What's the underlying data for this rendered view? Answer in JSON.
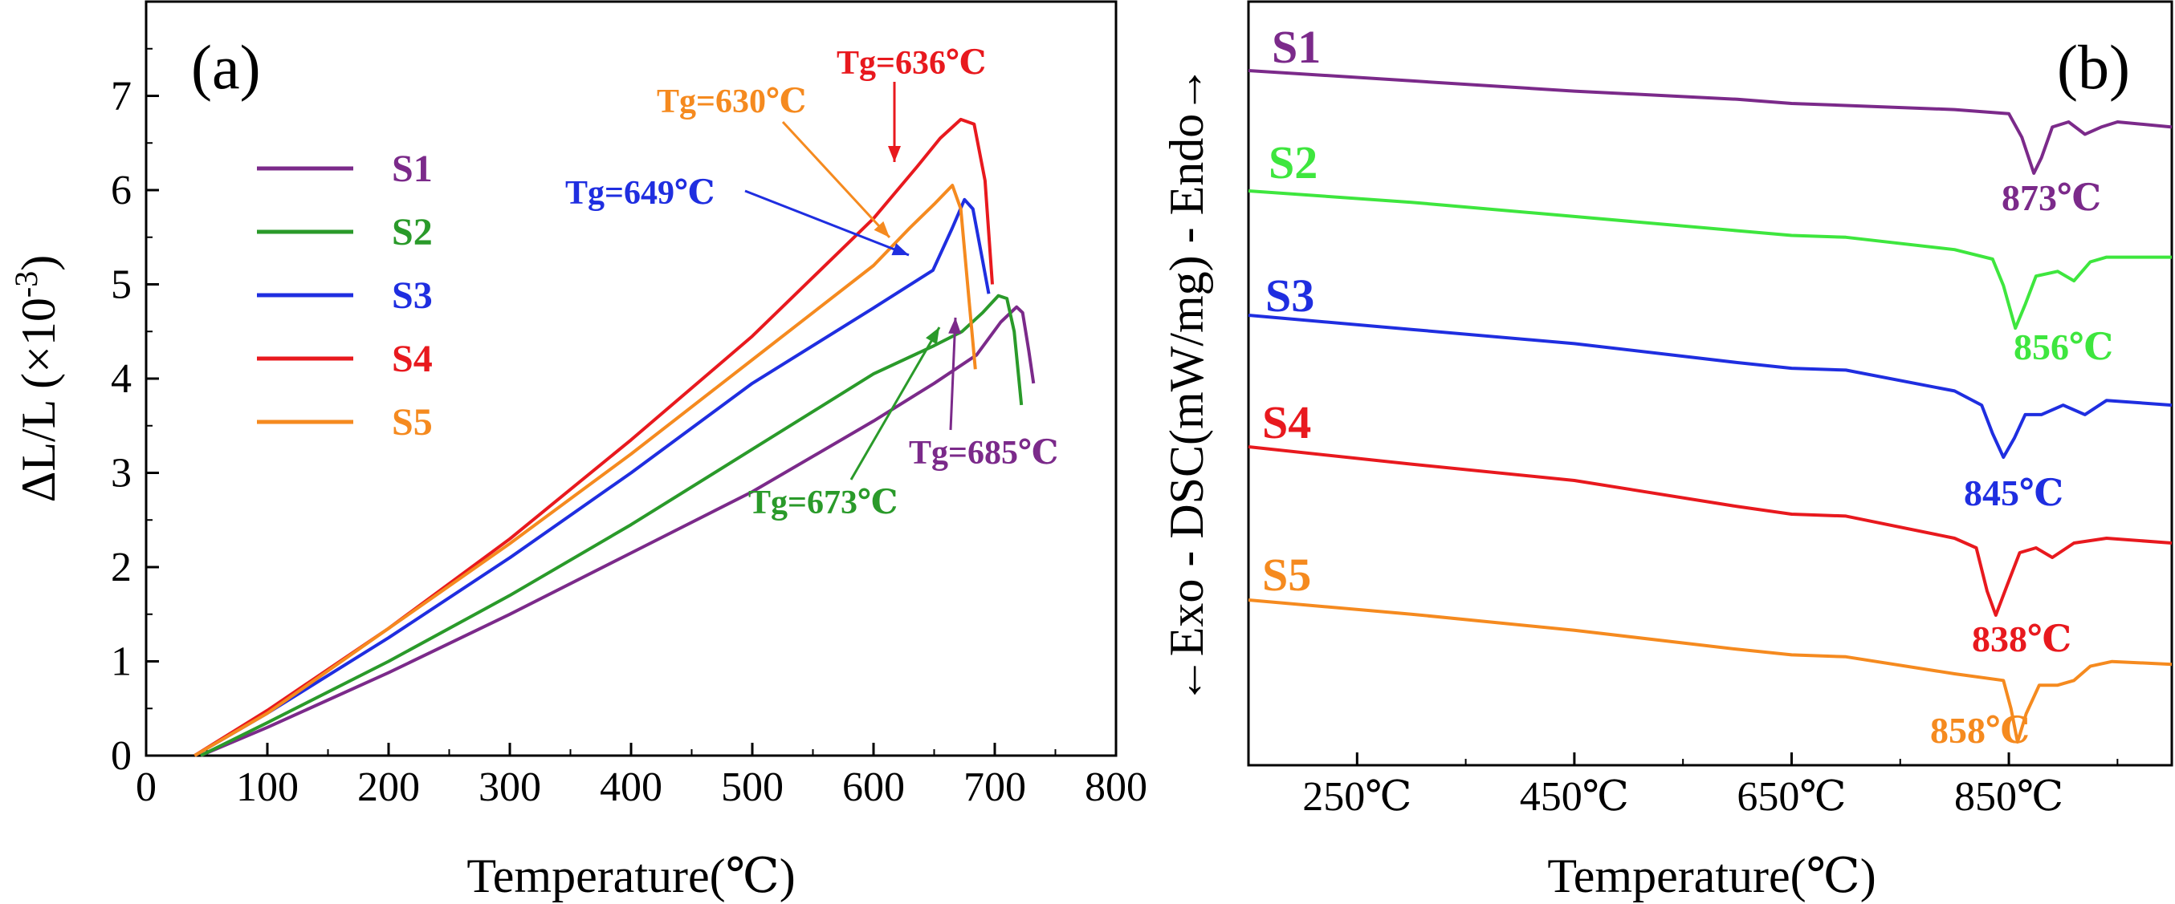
{
  "chart_data": [
    {
      "panel": "(a)",
      "type": "line",
      "xlabel": "Temperature(℃)",
      "ylabel_main": "ΔL/L (×10",
      "ylabel_sup": "-3",
      "ylabel_close": ")",
      "xlim": [
        0,
        800
      ],
      "ylim": [
        0,
        8
      ],
      "xticks": [
        0,
        100,
        200,
        300,
        400,
        500,
        600,
        700,
        800
      ],
      "yticks": [
        0,
        1,
        2,
        3,
        4,
        5,
        6,
        7
      ],
      "legend": {
        "placement": "upper-left"
      },
      "series": [
        {
          "name": "S1",
          "color": "#7b2a8a",
          "points": [
            [
              45,
              0
            ],
            [
              100,
              0.3
            ],
            [
              200,
              0.88
            ],
            [
              300,
              1.5
            ],
            [
              400,
              2.15
            ],
            [
              500,
              2.8
            ],
            [
              600,
              3.55
            ],
            [
              650,
              3.95
            ],
            [
              685,
              4.25
            ],
            [
              705,
              4.6
            ],
            [
              718,
              4.76
            ],
            [
              723,
              4.7
            ],
            [
              728,
              4.3
            ],
            [
              732,
              3.95
            ]
          ]
        },
        {
          "name": "S2",
          "color": "#2a9a2a",
          "points": [
            [
              45,
              0
            ],
            [
              100,
              0.35
            ],
            [
              200,
              1.0
            ],
            [
              300,
              1.7
            ],
            [
              400,
              2.45
            ],
            [
              500,
              3.25
            ],
            [
              600,
              4.05
            ],
            [
              650,
              4.35
            ],
            [
              673,
              4.5
            ],
            [
              690,
              4.7
            ],
            [
              703,
              4.88
            ],
            [
              710,
              4.85
            ],
            [
              716,
              4.5
            ],
            [
              722,
              3.72
            ]
          ]
        },
        {
          "name": "S3",
          "color": "#1f2ee0",
          "points": [
            [
              40,
              0
            ],
            [
              100,
              0.45
            ],
            [
              200,
              1.25
            ],
            [
              300,
              2.1
            ],
            [
              400,
              3.0
            ],
            [
              500,
              3.95
            ],
            [
              600,
              4.75
            ],
            [
              649,
              5.15
            ],
            [
              665,
              5.6
            ],
            [
              675,
              5.9
            ],
            [
              682,
              5.8
            ],
            [
              690,
              5.25
            ],
            [
              695,
              4.9
            ]
          ]
        },
        {
          "name": "S4",
          "color": "#e8191e",
          "points": [
            [
              40,
              0
            ],
            [
              100,
              0.48
            ],
            [
              200,
              1.35
            ],
            [
              300,
              2.3
            ],
            [
              400,
              3.35
            ],
            [
              500,
              4.45
            ],
            [
              600,
              5.7
            ],
            [
              636,
              6.25
            ],
            [
              655,
              6.55
            ],
            [
              672,
              6.75
            ],
            [
              683,
              6.7
            ],
            [
              692,
              6.1
            ],
            [
              698,
              5.0
            ]
          ]
        },
        {
          "name": "S5",
          "color": "#f58a1f",
          "points": [
            [
              40,
              0
            ],
            [
              100,
              0.45
            ],
            [
              200,
              1.35
            ],
            [
              300,
              2.25
            ],
            [
              400,
              3.2
            ],
            [
              500,
              4.2
            ],
            [
              600,
              5.2
            ],
            [
              630,
              5.6
            ],
            [
              650,
              5.85
            ],
            [
              665,
              6.05
            ],
            [
              672,
              5.8
            ],
            [
              679,
              4.8
            ],
            [
              684,
              4.1
            ]
          ]
        }
      ],
      "annotations": [
        {
          "text": "Tg=636℃",
          "color": "#e8191e"
        },
        {
          "text": "Tg=630℃",
          "color": "#f58a1f"
        },
        {
          "text": "Tg=649℃",
          "color": "#1f2ee0"
        },
        {
          "text": "Tg=685℃",
          "color": "#7b2a8a"
        },
        {
          "text": "Tg=673℃",
          "color": "#2a9a2a"
        }
      ]
    },
    {
      "panel": "(b)",
      "type": "line",
      "xlabel": "Temperature(℃)",
      "ylabel": "←Exo - DSC(mW/mg) - Endo→",
      "xlim": [
        150,
        1000
      ],
      "xticks": [
        250,
        450,
        650,
        850
      ],
      "xtick_labels": [
        "250℃",
        "450℃",
        "650℃",
        "850℃"
      ],
      "series": [
        {
          "name": "S1",
          "color": "#7b2a8a",
          "peak_label": "873℃",
          "points": [
            [
              150,
              0.0
            ],
            [
              300,
              0.1
            ],
            [
              450,
              0.2
            ],
            [
              600,
              0.28
            ],
            [
              650,
              0.32
            ],
            [
              700,
              0.34
            ],
            [
              800,
              0.38
            ],
            [
              850,
              0.42
            ],
            [
              862,
              0.65
            ],
            [
              873,
              1.0
            ],
            [
              880,
              0.85
            ],
            [
              890,
              0.55
            ],
            [
              905,
              0.5
            ],
            [
              920,
              0.62
            ],
            [
              935,
              0.55
            ],
            [
              950,
              0.5
            ],
            [
              1000,
              0.55
            ]
          ]
        },
        {
          "name": "S2",
          "color": "#3ee63e",
          "peak_label": "856℃",
          "points": [
            [
              150,
              0.0
            ],
            [
              300,
              0.12
            ],
            [
              450,
              0.27
            ],
            [
              600,
              0.42
            ],
            [
              650,
              0.47
            ],
            [
              700,
              0.49
            ],
            [
              800,
              0.62
            ],
            [
              835,
              0.72
            ],
            [
              845,
              1.0
            ],
            [
              856,
              1.45
            ],
            [
              865,
              1.2
            ],
            [
              875,
              0.9
            ],
            [
              895,
              0.85
            ],
            [
              910,
              0.95
            ],
            [
              925,
              0.75
            ],
            [
              940,
              0.7
            ],
            [
              1000,
              0.7
            ]
          ]
        },
        {
          "name": "S3",
          "color": "#1f2ee0",
          "peak_label": "845℃",
          "points": [
            [
              150,
              0.0
            ],
            [
              300,
              0.15
            ],
            [
              450,
              0.3
            ],
            [
              600,
              0.5
            ],
            [
              650,
              0.56
            ],
            [
              700,
              0.58
            ],
            [
              800,
              0.8
            ],
            [
              825,
              0.95
            ],
            [
              835,
              1.25
            ],
            [
              845,
              1.5
            ],
            [
              855,
              1.3
            ],
            [
              865,
              1.05
            ],
            [
              880,
              1.05
            ],
            [
              900,
              0.95
            ],
            [
              920,
              1.05
            ],
            [
              940,
              0.9
            ],
            [
              1000,
              0.95
            ]
          ]
        },
        {
          "name": "S4",
          "color": "#e8191e",
          "peak_label": "838℃",
          "points": [
            [
              150,
              0.0
            ],
            [
              300,
              0.18
            ],
            [
              450,
              0.35
            ],
            [
              600,
              0.62
            ],
            [
              650,
              0.7
            ],
            [
              700,
              0.72
            ],
            [
              800,
              0.95
            ],
            [
              820,
              1.05
            ],
            [
              830,
              1.5
            ],
            [
              838,
              1.75
            ],
            [
              848,
              1.45
            ],
            [
              860,
              1.1
            ],
            [
              875,
              1.05
            ],
            [
              890,
              1.15
            ],
            [
              910,
              1.0
            ],
            [
              940,
              0.95
            ],
            [
              1000,
              1.0
            ]
          ]
        },
        {
          "name": "S5",
          "color": "#f58a1f",
          "peak_label": "858℃",
          "points": [
            [
              150,
              0.0
            ],
            [
              300,
              0.15
            ],
            [
              450,
              0.32
            ],
            [
              600,
              0.52
            ],
            [
              650,
              0.58
            ],
            [
              700,
              0.6
            ],
            [
              800,
              0.78
            ],
            [
              845,
              0.85
            ],
            [
              852,
              1.15
            ],
            [
              858,
              1.5
            ],
            [
              866,
              1.2
            ],
            [
              878,
              0.9
            ],
            [
              895,
              0.9
            ],
            [
              910,
              0.85
            ],
            [
              925,
              0.7
            ],
            [
              945,
              0.65
            ],
            [
              1000,
              0.68
            ]
          ]
        }
      ]
    }
  ]
}
